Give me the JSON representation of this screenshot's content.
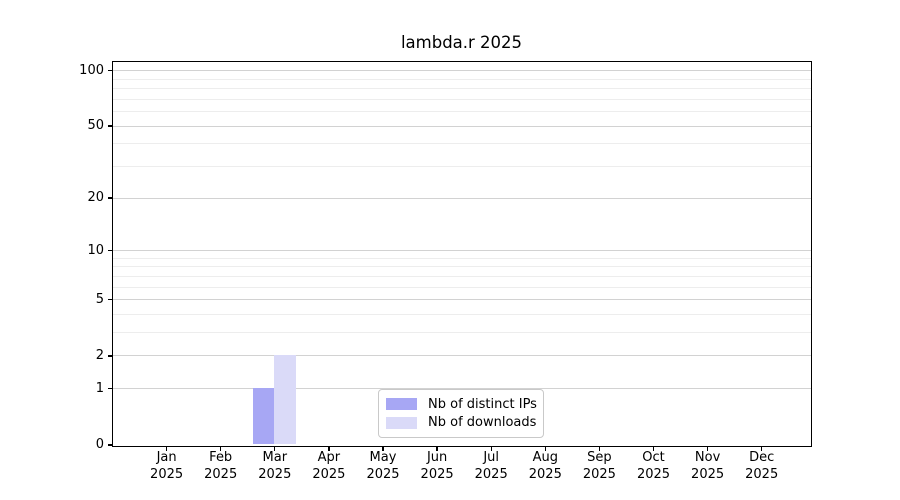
{
  "chart_data": {
    "type": "bar",
    "title": "lambda.r 2025",
    "x_year": "2025",
    "categories": [
      "Jan",
      "Feb",
      "Mar",
      "Apr",
      "May",
      "Jun",
      "Jul",
      "Aug",
      "Sep",
      "Oct",
      "Nov",
      "Dec"
    ],
    "series": [
      {
        "name": "Nb of distinct IPs",
        "color": "#a7a7f4",
        "values": [
          0,
          0,
          1,
          0,
          0,
          0,
          0,
          0,
          0,
          0,
          0,
          0
        ]
      },
      {
        "name": "Nb of downloads",
        "color": "#dadaf8",
        "values": [
          0,
          0,
          2,
          0,
          0,
          0,
          0,
          0,
          0,
          0,
          0,
          0
        ]
      }
    ],
    "yscale": "log1p",
    "ylim": [
      0,
      112
    ],
    "y_major_ticks": [
      0,
      1,
      2,
      5,
      10,
      20,
      50,
      100
    ],
    "y_minor_ticks": [
      3,
      4,
      6,
      7,
      8,
      9,
      30,
      40,
      60,
      70,
      80,
      90
    ],
    "grid": "horizontal",
    "legend_position": "lower-center-inside",
    "colors": {
      "bar_distinct_ips": "#a7a7f4",
      "bar_downloads": "#dadaf8",
      "major_grid": "#d2d2d2",
      "minor_grid": "#ededed",
      "axis": "#000000",
      "text": "#000000",
      "legend_border": "#c9c9c9"
    }
  }
}
